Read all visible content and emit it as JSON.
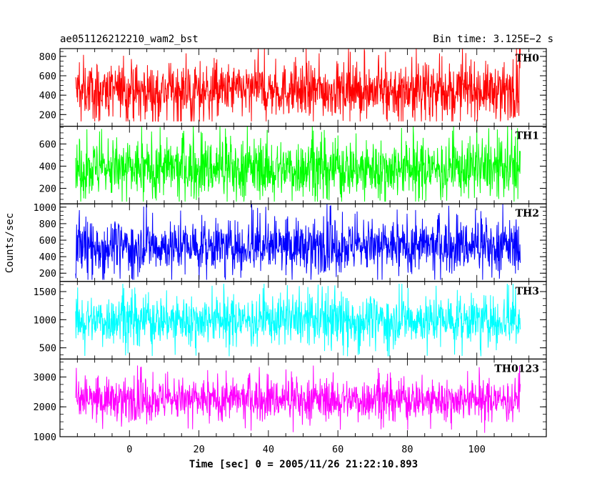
{
  "chart_data": {
    "type": "line",
    "title_left": "ae051126212210_wam2_bst",
    "title_right": "Bin time: 3.125E−2 s",
    "xlabel": "Time [sec] 0 = 2005/11/26 21:22:10.893",
    "ylabel": "Counts/sec",
    "xlim": [
      -20,
      120
    ],
    "data_range": [
      -15.5,
      112.5
    ],
    "x_ticks": [
      "0",
      "20",
      "40",
      "60",
      "80",
      "100"
    ],
    "grid": false,
    "panels": [
      {
        "label": "TH0",
        "color": "#ff0000",
        "ylim": [
          80,
          880
        ],
        "ticks": [
          "200",
          "400",
          "600",
          "800"
        ],
        "baseline": 450,
        "half_spread": 240,
        "min": 130,
        "max": 880
      },
      {
        "label": "TH1",
        "color": "#00ff00",
        "ylim": [
          60,
          760
        ],
        "ticks": [
          "200",
          "400",
          "600"
        ],
        "baseline": 380,
        "half_spread": 230,
        "min": 80,
        "max": 760
      },
      {
        "label": "TH2",
        "color": "#0000ff",
        "ylim": [
          100,
          1040
        ],
        "ticks": [
          "200",
          "400",
          "600",
          "800",
          "1000"
        ],
        "baseline": 530,
        "half_spread": 270,
        "min": 120,
        "max": 1040
      },
      {
        "label": "TH3",
        "color": "#00ffff",
        "ylim": [
          300,
          1680
        ],
        "ticks": [
          "500",
          "1000",
          "1500"
        ],
        "baseline": 1000,
        "half_spread": 380,
        "min": 350,
        "max": 1640
      },
      {
        "label": "TH0123",
        "color": "#ff00ff",
        "ylim": [
          1000,
          3600
        ],
        "ticks": [
          "1000",
          "2000",
          "3000"
        ],
        "baseline": 2250,
        "half_spread": 600,
        "min": 1050,
        "max": 3550
      }
    ]
  }
}
